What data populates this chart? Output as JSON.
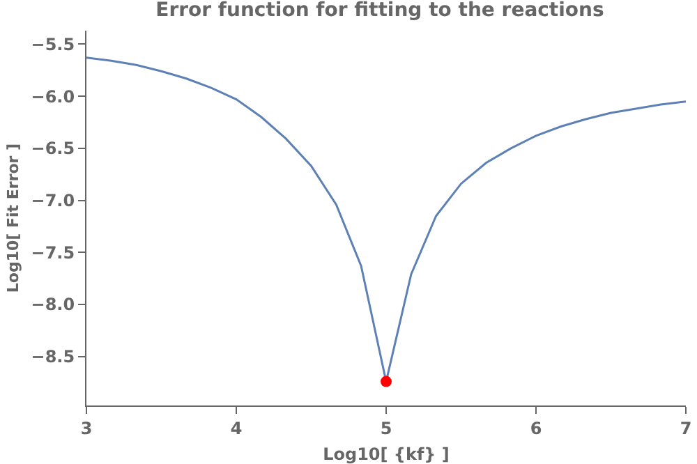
{
  "chart_data": {
    "type": "line",
    "title": "Error function for fitting to the reactions",
    "xlabel": "Log10[ {kf} ]",
    "ylabel": "Log10[ Fit Error ]",
    "xlim": [
      3,
      7
    ],
    "xticks": [
      3,
      4,
      5,
      6,
      7
    ],
    "ylim": [
      -8.97,
      -5.37
    ],
    "yticks": [
      {
        "value": -8.5,
        "label": "−8.5"
      },
      {
        "value": -8.0,
        "label": "−8.0"
      },
      {
        "value": -7.5,
        "label": "−7.5"
      },
      {
        "value": -7.0,
        "label": "−7.0"
      },
      {
        "value": -6.5,
        "label": "−6.5"
      },
      {
        "value": -6.0,
        "label": "−6.0"
      },
      {
        "value": -5.5,
        "label": "−5.5"
      }
    ],
    "grid": false,
    "marker": "none",
    "line_style": "solid",
    "series": [
      {
        "color": "#5e81b5",
        "x": [
          3,
          3.167,
          3.333,
          3.5,
          3.667,
          3.833,
          4,
          4.167,
          4.333,
          4.5,
          4.667,
          4.833,
          5,
          5.167,
          5.333,
          5.5,
          5.667,
          5.833,
          6,
          6.167,
          6.333,
          6.5,
          6.667,
          6.833,
          7
        ],
        "values": [
          -5.63,
          -5.66,
          -5.7,
          -5.76,
          -5.83,
          -5.92,
          -6.03,
          -6.2,
          -6.41,
          -6.67,
          -7.04,
          -7.63,
          -8.74,
          -7.71,
          -7.15,
          -6.84,
          -6.64,
          -6.5,
          -6.38,
          -6.29,
          -6.22,
          -6.16,
          -6.12,
          -6.08,
          -6.05
        ]
      },
      {
        "type": "scatter",
        "color": "#ff0000",
        "marker": "circle",
        "x": [
          5
        ],
        "values": [
          -8.74
        ]
      }
    ]
  }
}
